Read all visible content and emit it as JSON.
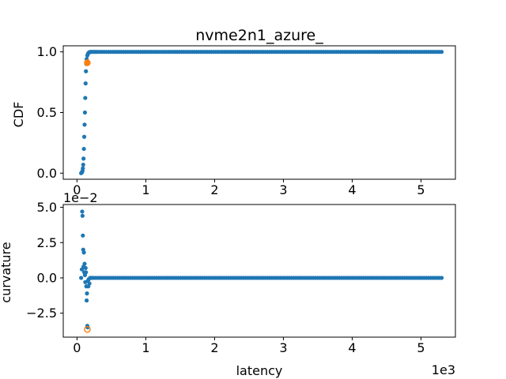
{
  "chart_data": [
    {
      "type": "scatter",
      "title": "nvme2n1_azure_",
      "xlabel": "",
      "ylabel": "CDF",
      "xlim": [
        -0.2,
        5.5
      ],
      "ylim": [
        -0.05,
        1.05
      ],
      "x_scale_label": "",
      "xticks": [
        {
          "v": 0,
          "t": "0"
        },
        {
          "v": 1,
          "t": "1"
        },
        {
          "v": 2,
          "t": "2"
        },
        {
          "v": 3,
          "t": "3"
        },
        {
          "v": 4,
          "t": "4"
        },
        {
          "v": 5,
          "t": "5"
        }
      ],
      "yticks": [
        {
          "v": 0.0,
          "t": "0.0"
        },
        {
          "v": 0.5,
          "t": "0.5"
        },
        {
          "v": 1.0,
          "t": "1.0"
        }
      ],
      "grid": false,
      "series": [
        {
          "color": "#1f77b4",
          "x": [
            0.06,
            0.07,
            0.075,
            0.08,
            0.085,
            0.09,
            0.095,
            0.1,
            0.105,
            0.11,
            0.115,
            0.12,
            0.125,
            0.13,
            0.135,
            0.14,
            0.15,
            0.16,
            0.17,
            0.18,
            0.19,
            0.2,
            0.22,
            0.24,
            0.26,
            0.28,
            0.3
          ],
          "y": [
            0.0,
            0.005,
            0.01,
            0.02,
            0.04,
            0.07,
            0.12,
            0.2,
            0.3,
            0.4,
            0.5,
            0.62,
            0.74,
            0.84,
            0.9,
            0.94,
            0.97,
            0.985,
            0.993,
            0.997,
            0.999,
            1.0,
            1.0,
            1.0,
            1.0,
            1.0,
            1.0
          ],
          "tail_from": 0.3,
          "tail_to": 5.3,
          "tail_value": 1.0,
          "tail_count": 160
        },
        {
          "color": "#ff7f0e",
          "x": [
            0.15
          ],
          "y": [
            0.91
          ]
        }
      ]
    },
    {
      "type": "scatter",
      "title": "",
      "xlabel": "latency",
      "ylabel": "curvature",
      "xlim": [
        -0.2,
        5.5
      ],
      "ylim": [
        -0.042,
        0.052
      ],
      "x_scale_label": "1e3",
      "y_scale_label": "1e−2",
      "xticks": [
        {
          "v": 0,
          "t": "0"
        },
        {
          "v": 1,
          "t": "1"
        },
        {
          "v": 2,
          "t": "2"
        },
        {
          "v": 3,
          "t": "3"
        },
        {
          "v": 4,
          "t": "4"
        },
        {
          "v": 5,
          "t": "5"
        }
      ],
      "yticks": [
        {
          "v": 0.05,
          "t": "5.0"
        },
        {
          "v": 0.025,
          "t": "2.5"
        },
        {
          "v": 0.0,
          "t": "0.0"
        },
        {
          "v": -0.025,
          "t": "−2.5"
        }
      ],
      "grid": false,
      "series": [
        {
          "color": "#1f77b4",
          "x": [
            0.06,
            0.07,
            0.075,
            0.08,
            0.085,
            0.09,
            0.095,
            0.1,
            0.105,
            0.11,
            0.115,
            0.12,
            0.125,
            0.13,
            0.135,
            0.14,
            0.145,
            0.15,
            0.155,
            0.16,
            0.165,
            0.17,
            0.18,
            0.19,
            0.2,
            0.22,
            0.24
          ],
          "y": [
            0.0,
            0.006,
            0.047,
            0.044,
            0.03,
            0.02,
            0.008,
            0.018,
            0.004,
            0.01,
            0.002,
            -0.003,
            0.007,
            0.004,
            -0.006,
            -0.016,
            -0.011,
            -0.034,
            -0.035,
            -0.002,
            -0.006,
            -0.001,
            -0.004,
            0.0,
            0.0,
            0.0,
            0.0
          ],
          "tail_from": 0.24,
          "tail_to": 5.3,
          "tail_value": 0.0,
          "tail_count": 160
        },
        {
          "color": "#ff7f0e",
          "hollow": true,
          "x": [
            0.15
          ],
          "y": [
            -0.0365
          ]
        }
      ]
    }
  ]
}
